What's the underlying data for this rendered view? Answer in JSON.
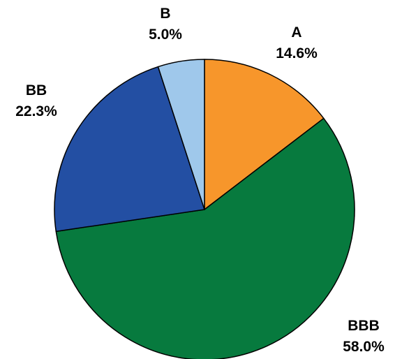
{
  "chart_data": {
    "type": "pie",
    "title": "",
    "start": "12 o'clock",
    "direction": "clockwise",
    "slices": [
      {
        "name": "A",
        "value": 14.6,
        "label": "14.6%",
        "color": "#F7962B"
      },
      {
        "name": "BBB",
        "value": 58.0,
        "label": "58.0%",
        "color": "#077A3E"
      },
      {
        "name": "BB",
        "value": 22.3,
        "label": "22.3%",
        "color": "#234FA3"
      },
      {
        "name": "B",
        "value": 5.0,
        "label": "5.0%",
        "color": "#9FC8EB"
      }
    ]
  }
}
